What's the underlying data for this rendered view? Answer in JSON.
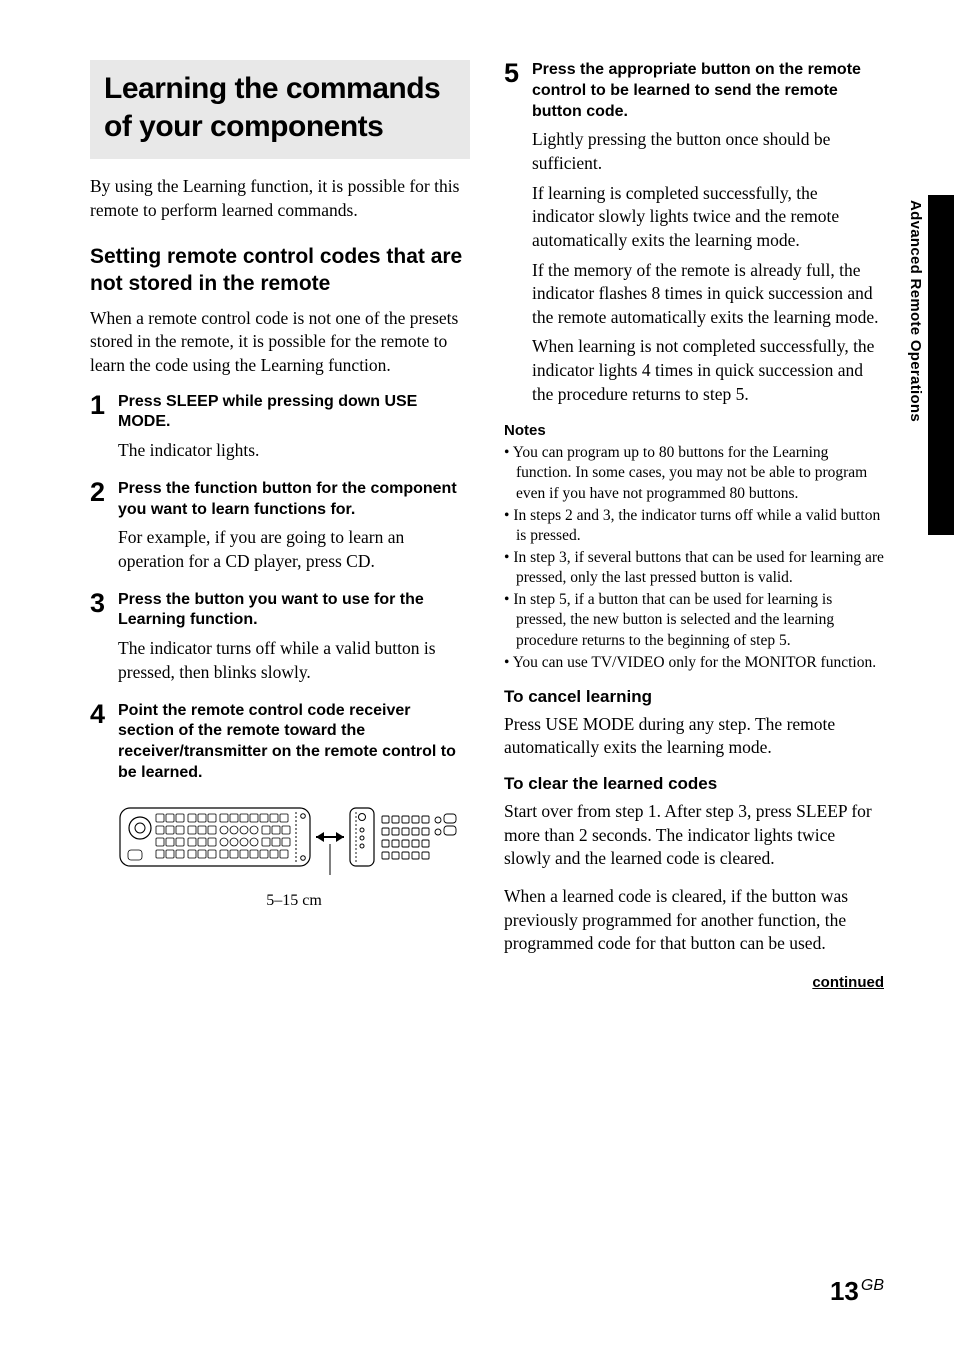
{
  "sidetab_label": "Advanced Remote Operations",
  "title": "Learning the commands of your components",
  "intro": "By using the Learning function, it is possible for this remote to perform learned commands.",
  "section_heading": "Setting remote control codes that are not stored in the remote",
  "section_intro": "When a remote control code is not one of the presets stored in the remote, it is possible for the remote to learn the code using the Learning function.",
  "steps_left": [
    {
      "num": "1",
      "head": "Press SLEEP while pressing down USE MODE.",
      "texts": [
        "The indicator lights."
      ]
    },
    {
      "num": "2",
      "head": "Press the function button for the component you want to learn functions for.",
      "texts": [
        "For example, if you are going to learn an operation for a CD player, press CD."
      ]
    },
    {
      "num": "3",
      "head": "Press the button you want to use for the Learning function.",
      "texts": [
        "The indicator turns off while a valid button is pressed, then blinks slowly."
      ]
    },
    {
      "num": "4",
      "head": "Point the remote control code receiver section of the remote toward the receiver/transmitter on the remote control to be learned.",
      "texts": []
    }
  ],
  "diagram_caption": "5–15 cm",
  "step5": {
    "num": "5",
    "head": "Press the appropriate button on the remote control to be learned to send the remote button code.",
    "texts": [
      "Lightly pressing the button once should be sufficient.",
      "If learning is completed successfully, the indicator slowly lights twice and the remote automatically exits the learning mode.",
      "If the memory of the remote is already full, the indicator flashes 8 times in quick succession and the remote automatically exits the learning mode.",
      "When learning is not completed successfully, the indicator lights 4 times in quick succession and the procedure returns to step 5."
    ]
  },
  "notes_label": "Notes",
  "notes": [
    "You can program up to 80 buttons for the Learning function. In some cases, you may not be able to program even if you have not programmed 80 buttons.",
    "In steps 2 and 3, the indicator turns off while a valid button is pressed.",
    "In step 3, if several buttons that can be used for learning are pressed, only the last pressed button is valid.",
    "In step 5, if a button that can be used for learning is pressed, the new button is selected and the learning procedure returns to the beginning of step 5.",
    "You can use TV/VIDEO only for the MONITOR function."
  ],
  "cancel_head": "To cancel learning",
  "cancel_text": "Press USE MODE during any step. The remote automatically exits the learning mode.",
  "clear_head": "To clear the learned codes",
  "clear_text1": "Start over from step 1. After step 3, press SLEEP for more than 2 seconds. The indicator lights twice slowly and the learned code is cleared.",
  "clear_text2": "When a learned code is cleared, if the button was previously programmed for another function, the programmed code for that button can be used.",
  "continued": "continued",
  "page_number": "13",
  "page_suffix": "GB"
}
